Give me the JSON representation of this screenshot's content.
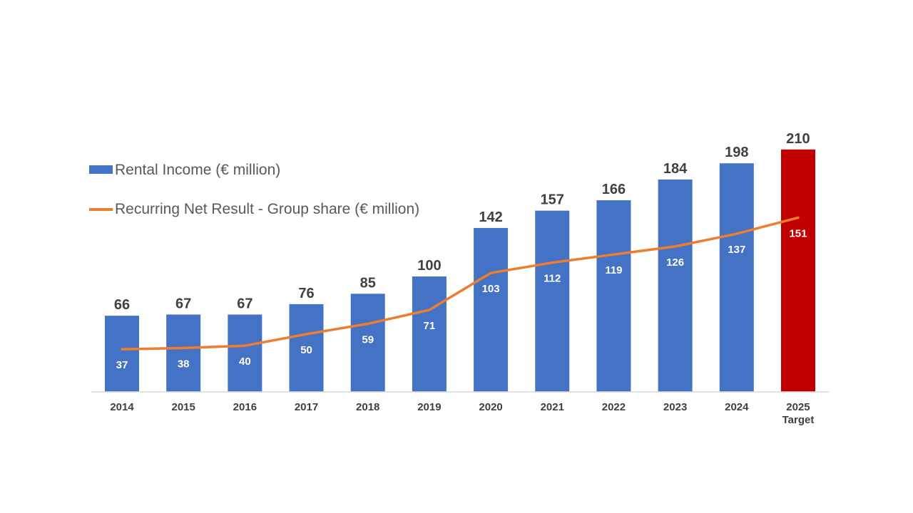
{
  "chart_data": {
    "type": "bar",
    "categories": [
      "2014",
      "2015",
      "2016",
      "2017",
      "2018",
      "2019",
      "2020",
      "2021",
      "2022",
      "2023",
      "2024",
      "2025"
    ],
    "category_sublabels": [
      "",
      "",
      "",
      "",
      "",
      "",
      "",
      "",
      "",
      "",
      "",
      "Target"
    ],
    "series": [
      {
        "name": "Rental Income (€ million)",
        "type": "bar",
        "color": "#4472C4",
        "highlight": {
          "index": 11,
          "color": "#C00000"
        },
        "values": [
          66,
          67,
          67,
          76,
          85,
          100,
          142,
          157,
          166,
          184,
          198,
          210
        ]
      },
      {
        "name": "Recurring Net Result - Group share (€ million)",
        "type": "line",
        "color": "#ED7D31",
        "values": [
          37,
          38,
          40,
          50,
          59,
          71,
          103,
          112,
          119,
          126,
          137,
          151
        ]
      }
    ],
    "ylim": [
      0,
      210
    ],
    "grid": false,
    "legend": "top-left",
    "title": "",
    "xlabel": "",
    "ylabel": ""
  }
}
